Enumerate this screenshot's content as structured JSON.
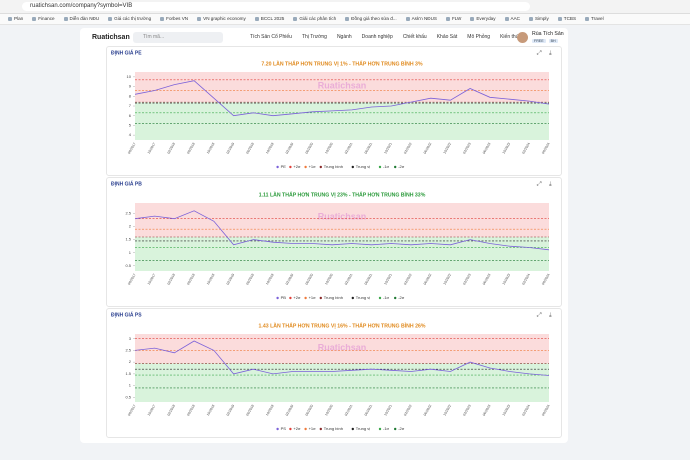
{
  "browser": {
    "url": "ruatichsan.com/company?symbol=VIB",
    "bookmarks": [
      "Plan",
      "Finance",
      "Diễn đàn NĐU",
      "Giá các thị trường",
      "Forbes VN",
      "VN graphic economy",
      "BCCL 2025",
      "Giải các phân tích",
      "Đồng giá theo sửa đ...",
      "Ask'n NĐUS",
      "FLW",
      "Everyday",
      "AAC",
      "Simply",
      "TCBS",
      "Travel"
    ]
  },
  "nav": {
    "logo": "Ruatichsan",
    "search_placeholder": "Tìm mã...",
    "menu": [
      "Tích Sản Cổ Phiếu",
      "Thị Trường",
      "Ngành",
      "Doanh nghiệp",
      "Chiết khấu",
      "Khảo Sát",
      "Mô Phỏng",
      "Kiến thức"
    ],
    "user": {
      "name": "Rùa Tích Sản",
      "badges": [
        "FREE",
        "BH"
      ]
    }
  },
  "chart_data": [
    {
      "type": "line",
      "title": "ĐỊNH GIÁ PE",
      "subtitle": "7.20 LẦN  THẤP HƠN TRUNG VỊ 1% - THẤP HƠN TRUNG BÌNH 3%",
      "subtitle_color": "#e08a1e",
      "watermark": "Ruatichsan",
      "categories": [
        "06/2017",
        "10/2017",
        "02/2018",
        "06/2018",
        "10/2018",
        "02/2019",
        "06/2019",
        "10/2019",
        "02/2020",
        "06/2020",
        "10/2020",
        "02/2021",
        "06/2021",
        "10/2021",
        "02/2022",
        "06/2022",
        "10/2022",
        "02/2023",
        "06/2023",
        "10/2023",
        "02/2024",
        "06/2024"
      ],
      "series": [
        {
          "name": "PE",
          "color": "#7b61d9",
          "values": [
            8.2,
            8.6,
            9.2,
            9.6,
            7.8,
            6.0,
            6.3,
            6.0,
            6.2,
            6.4,
            6.5,
            6.6,
            6.9,
            7.0,
            7.4,
            7.8,
            7.6,
            8.8,
            7.9,
            7.7,
            7.5,
            7.2
          ]
        }
      ],
      "reference_lines": [
        {
          "name": "+2σ",
          "color": "#e0403a",
          "value": 9.7
        },
        {
          "name": "+1σ",
          "color": "#f07a3a",
          "value": 8.6
        },
        {
          "name": "Trung bình",
          "color": "#8a2b2b",
          "value": 7.4
        },
        {
          "name": "Trung vị",
          "color": "#222222",
          "value": 7.3
        },
        {
          "name": "-1σ",
          "color": "#3aa84a",
          "value": 6.3
        },
        {
          "name": "-2σ",
          "color": "#1f7a33",
          "value": 5.2
        }
      ],
      "band_colors": [
        "#fbdcdc",
        "#d9f3dc"
      ],
      "ylim": [
        3.5,
        10.5
      ],
      "yticks": [
        4,
        5,
        6,
        7,
        8,
        9,
        10
      ]
    },
    {
      "type": "line",
      "title": "ĐỊNH GIÁ PB",
      "subtitle": "1.11 LẦN  THẤP HƠN TRUNG VỊ 23% - THẤP HƠN TRUNG BÌNH 33%",
      "subtitle_color": "#2a9a3a",
      "watermark": "Ruatichsan",
      "categories": [
        "06/2017",
        "10/2017",
        "02/2018",
        "06/2018",
        "10/2018",
        "02/2019",
        "06/2019",
        "10/2019",
        "02/2020",
        "06/2020",
        "10/2020",
        "02/2021",
        "06/2021",
        "10/2021",
        "02/2022",
        "06/2022",
        "10/2022",
        "02/2023",
        "06/2023",
        "10/2023",
        "02/2024",
        "06/2024"
      ],
      "series": [
        {
          "name": "PB",
          "color": "#7b61d9",
          "values": [
            2.3,
            2.4,
            2.3,
            2.6,
            2.2,
            1.3,
            1.5,
            1.4,
            1.35,
            1.35,
            1.3,
            1.35,
            1.3,
            1.35,
            1.3,
            1.35,
            1.3,
            1.5,
            1.35,
            1.25,
            1.2,
            1.11
          ]
        }
      ],
      "reference_lines": [
        {
          "name": "+2σ",
          "color": "#e0403a",
          "value": 2.3
        },
        {
          "name": "+1σ",
          "color": "#f07a3a",
          "value": 1.9
        },
        {
          "name": "Trung bình",
          "color": "#8a2b2b",
          "value": 1.6
        },
        {
          "name": "Trung vị",
          "color": "#222222",
          "value": 1.45
        },
        {
          "name": "-1σ",
          "color": "#3aa84a",
          "value": 1.2
        },
        {
          "name": "-2σ",
          "color": "#1f7a33",
          "value": 0.7
        }
      ],
      "band_colors": [
        "#fbdcdc",
        "#d9f3dc"
      ],
      "ylim": [
        0.3,
        2.9
      ],
      "yticks": [
        0.5,
        1,
        1.5,
        2,
        2.5
      ]
    },
    {
      "type": "line",
      "title": "ĐỊNH GIÁ PS",
      "subtitle": "1.43 LẦN  THẤP HƠN TRUNG VỊ 16% - THẤP HƠN TRUNG BÌNH 26%",
      "subtitle_color": "#e08a1e",
      "watermark": "Ruatichsan",
      "categories": [
        "06/2017",
        "10/2017",
        "02/2018",
        "06/2018",
        "10/2018",
        "02/2019",
        "06/2019",
        "10/2019",
        "02/2020",
        "06/2020",
        "10/2020",
        "02/2021",
        "06/2021",
        "10/2021",
        "02/2022",
        "06/2022",
        "10/2022",
        "02/2023",
        "06/2023",
        "10/2023",
        "02/2024",
        "06/2024"
      ],
      "series": [
        {
          "name": "PS",
          "color": "#7b61d9",
          "values": [
            2.5,
            2.6,
            2.4,
            2.9,
            2.5,
            1.5,
            1.7,
            1.5,
            1.6,
            1.6,
            1.6,
            1.65,
            1.7,
            1.65,
            1.6,
            1.7,
            1.6,
            2.0,
            1.75,
            1.6,
            1.5,
            1.43
          ]
        }
      ],
      "reference_lines": [
        {
          "name": "+2σ",
          "color": "#e0403a",
          "value": 3.0
        },
        {
          "name": "+1σ",
          "color": "#f07a3a",
          "value": 2.5
        },
        {
          "name": "Trung bình",
          "color": "#8a2b2b",
          "value": 1.95
        },
        {
          "name": "Trung vị",
          "color": "#222222",
          "value": 1.7
        },
        {
          "name": "-1σ",
          "color": "#3aa84a",
          "value": 1.45
        },
        {
          "name": "-2σ",
          "color": "#1f7a33",
          "value": 0.9
        }
      ],
      "band_colors": [
        "#fbdcdc",
        "#d9f3dc"
      ],
      "ylim": [
        0.3,
        3.2
      ],
      "yticks": [
        0.5,
        1,
        1.5,
        2,
        2.5,
        3
      ]
    }
  ]
}
